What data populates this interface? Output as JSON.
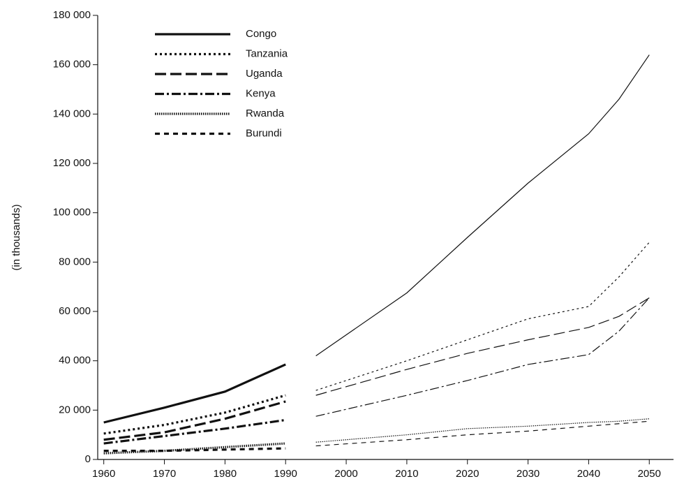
{
  "chart_data": {
    "type": "line",
    "y_label": "(in thousands)",
    "x": [
      1960,
      1970,
      1980,
      1990,
      1992,
      1995,
      2010,
      2020,
      2030,
      2040,
      2045,
      2050
    ],
    "xlim": [
      1959,
      2054
    ],
    "xticks": [
      1960,
      1970,
      1980,
      1990,
      2000,
      2010,
      2020,
      2030,
      2040,
      2050
    ],
    "ylim": [
      0,
      180000
    ],
    "yticks": [
      0,
      {
        "value": 20000,
        "label": "20 000"
      },
      {
        "value": 40000,
        "label": "40 000"
      },
      {
        "value": 60000,
        "label": "60 000"
      },
      {
        "value": 80000,
        "label": "80 000"
      },
      {
        "value": 100000,
        "label": "100 000"
      },
      {
        "value": 120000,
        "label": "120 000"
      },
      {
        "value": 140000,
        "label": "140 000"
      },
      {
        "value": 160000,
        "label": "160 000"
      },
      {
        "value": 180000,
        "label": "180 000"
      }
    ],
    "legend": "upper left",
    "series": [
      {
        "name": "Congo",
        "color": "#111111",
        "style": "solid",
        "values": [
          15000,
          21000,
          27500,
          38500,
          null,
          42000,
          67500,
          90000,
          112000,
          132000,
          146000,
          164000
        ]
      },
      {
        "name": "Tanzania",
        "color": "#111111",
        "style": "dotted",
        "values": [
          10500,
          14000,
          19000,
          26000,
          null,
          28000,
          40000,
          48500,
          57000,
          62000,
          74000,
          88000
        ]
      },
      {
        "name": "Uganda",
        "color": "#111111",
        "style": "long-dash",
        "values": [
          8000,
          11000,
          16500,
          23500,
          null,
          26000,
          36500,
          43000,
          48500,
          53500,
          58000,
          65500
        ]
      },
      {
        "name": "Kenya",
        "color": "#111111",
        "style": "dash-dot",
        "values": [
          6500,
          9500,
          12500,
          16000,
          null,
          17500,
          26000,
          32000,
          38500,
          42500,
          52000,
          65500
        ]
      },
      {
        "name": "Rwanda",
        "color": "#111111",
        "style": "fine-dot",
        "values": [
          2500,
          3500,
          5000,
          6500,
          null,
          7000,
          10000,
          12500,
          13500,
          15000,
          15500,
          16500
        ]
      },
      {
        "name": "Burundi",
        "color": "#111111",
        "style": "dashed",
        "values": [
          3500,
          3500,
          4000,
          4500,
          null,
          5500,
          8000,
          10000,
          11500,
          13500,
          14500,
          15500
        ]
      }
    ]
  }
}
